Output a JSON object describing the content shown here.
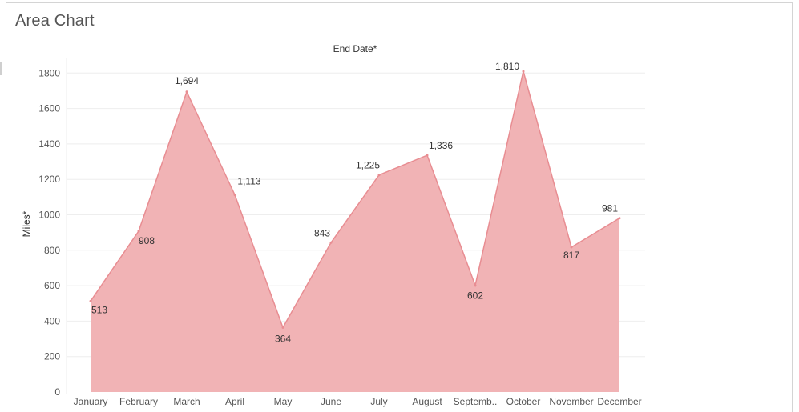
{
  "page": {
    "title": "Area Chart"
  },
  "chart_data": {
    "type": "area",
    "title": "End Date*",
    "xlabel": "",
    "ylabel": "Miles*",
    "categories": [
      "January",
      "February",
      "March",
      "April",
      "May",
      "June",
      "July",
      "August",
      "Septemb..",
      "October",
      "November",
      "December"
    ],
    "values": [
      513,
      908,
      1694,
      1113,
      364,
      843,
      1225,
      1336,
      602,
      1810,
      817,
      981
    ],
    "data_labels": [
      "513",
      "908",
      "1,694",
      "1,113",
      "364",
      "843",
      "1,225",
      "1,336",
      "602",
      "1,810",
      "817",
      "981"
    ],
    "yticks": [
      0,
      200,
      400,
      600,
      800,
      1000,
      1200,
      1400,
      1600,
      1800
    ],
    "ylim": [
      0,
      1900
    ],
    "grid": true,
    "legend": "none",
    "colors": {
      "fill": "#f1b3b5",
      "stroke": "#e88d92",
      "grid": "#eeeeee",
      "text": "#333333",
      "tick": "#555555"
    }
  }
}
